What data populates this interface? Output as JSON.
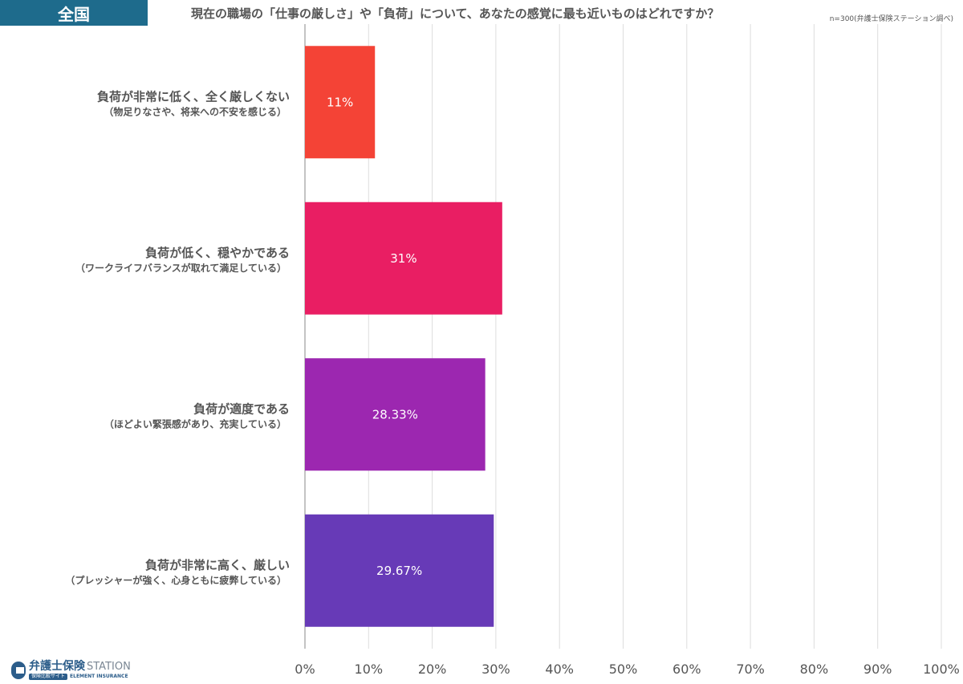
{
  "header": {
    "region_tag": "全国",
    "title": "現在の職場の「仕事の厳しさ」や「負荷」について、あなたの感覚に最も近いものはどれですか？",
    "sample_note": "n=300(弁護士保険ステーション調べ)"
  },
  "colors": {
    "tag_bg": "#1e6b8c",
    "grid": "#dddddd",
    "axis": "#888888",
    "text": "#555555",
    "logo": "#2c5d8a"
  },
  "logo": {
    "main": "弁護士保険",
    "station": "STATION",
    "sub": "保険比較サイト",
    "sub_en": "ELEMENT INSURANCE"
  },
  "chart_data": {
    "type": "bar",
    "orientation": "horizontal",
    "categories": [
      {
        "main": "負荷が非常に低く、全く厳しくない",
        "sub": "（物足りなさや、将来への不安を感じる）"
      },
      {
        "main": "負荷が低く、穏やかである",
        "sub": "（ワークライフバランスが取れて満足している）"
      },
      {
        "main": "負荷が適度である",
        "sub": "（ほどよい緊張感があり、充実している）"
      },
      {
        "main": "負荷が非常に高く、厳しい",
        "sub": "（プレッシャーが強く、心身ともに疲弊している）"
      }
    ],
    "values": [
      11,
      31,
      28.33,
      29.67
    ],
    "value_labels": [
      "11%",
      "31%",
      "28.33%",
      "29.67%"
    ],
    "bar_colors": [
      "#f44336",
      "#e91e63",
      "#9c27b0",
      "#673ab7"
    ],
    "xlim": [
      0,
      100
    ],
    "x_ticks": [
      "0%",
      "10%",
      "20%",
      "30%",
      "40%",
      "50%",
      "60%",
      "70%",
      "80%",
      "90%",
      "100%"
    ],
    "grid": true
  }
}
